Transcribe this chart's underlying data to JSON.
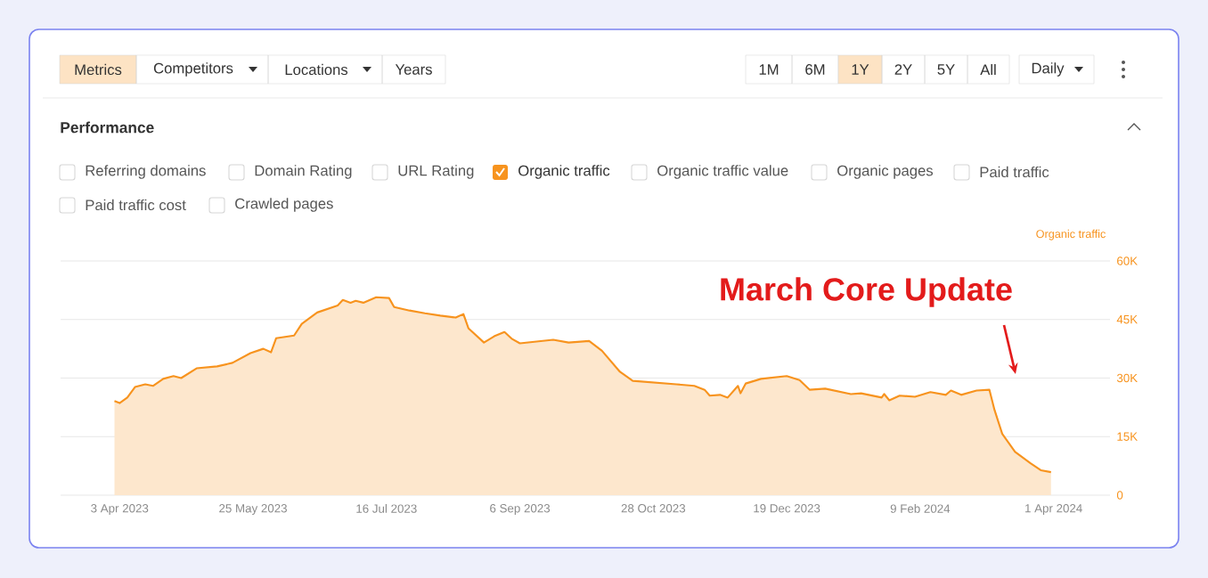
{
  "chart_data": {
    "type": "area",
    "title": "Performance",
    "ylabel": "Organic traffic",
    "x": [
      "2023-04-01",
      "2023-04-03",
      "2023-04-06",
      "2023-04-09",
      "2023-04-13",
      "2023-04-16",
      "2023-04-20",
      "2023-04-24",
      "2023-04-27",
      "2023-05-03",
      "2023-05-11",
      "2023-05-17",
      "2023-05-24",
      "2023-05-29",
      "2023-06-01",
      "2023-06-03",
      "2023-06-10",
      "2023-06-13",
      "2023-06-19",
      "2023-06-27",
      "2023-06-29",
      "2023-07-02",
      "2023-07-04",
      "2023-07-07",
      "2023-07-12",
      "2023-07-17",
      "2023-07-19",
      "2023-07-25",
      "2023-07-31",
      "2023-08-06",
      "2023-08-12",
      "2023-08-15",
      "2023-08-17",
      "2023-08-23",
      "2023-08-27",
      "2023-08-31",
      "2023-09-03",
      "2023-09-06",
      "2023-09-19",
      "2023-09-25",
      "2023-10-03",
      "2023-10-08",
      "2023-10-15",
      "2023-10-20",
      "2023-11-06",
      "2023-11-13",
      "2023-11-17",
      "2023-11-19",
      "2023-11-23",
      "2023-11-26",
      "2023-11-30",
      "2023-12-01",
      "2023-12-03",
      "2023-12-09",
      "2023-12-19",
      "2023-12-24",
      "2023-12-28",
      "2024-01-03",
      "2024-01-13",
      "2024-01-17",
      "2024-01-25",
      "2024-01-26",
      "2024-01-28",
      "2024-02-01",
      "2024-02-07",
      "2024-02-13",
      "2024-02-19",
      "2024-02-21",
      "2024-02-25",
      "2024-03-02",
      "2024-03-07",
      "2024-03-09",
      "2024-03-12",
      "2024-03-17",
      "2024-03-23",
      "2024-03-27",
      "2024-03-31"
    ],
    "series": [
      {
        "color": "#f7931e",
        "values": [
          24100,
          23600,
          25000,
          27700,
          28400,
          28000,
          29800,
          30500,
          30000,
          32500,
          33000,
          33900,
          36400,
          37500,
          36600,
          40200,
          40900,
          43900,
          46800,
          48600,
          50000,
          49300,
          49800,
          49300,
          50700,
          50500,
          48200,
          47300,
          46600,
          46000,
          45500,
          46400,
          42700,
          39100,
          40700,
          41800,
          40000,
          38900,
          39800,
          39100,
          39500,
          37000,
          31600,
          29300,
          28400,
          28000,
          27000,
          25500,
          25700,
          25000,
          28000,
          26100,
          28600,
          29800,
          30500,
          29500,
          27000,
          27300,
          25900,
          26100,
          25000,
          25900,
          24300,
          25500,
          25200,
          26400,
          25700,
          26800,
          25700,
          26800,
          27000,
          21800,
          15700,
          11100,
          8200,
          6400,
          5900
        ]
      }
    ],
    "xlim": [
      "2023-03-11",
      "2024-04-23"
    ],
    "xticks": [
      {
        "value": "2023-04-03",
        "label": "3 Apr 2023"
      },
      {
        "value": "2023-05-25",
        "label": "25 May 2023"
      },
      {
        "value": "2023-07-16",
        "label": "16 Jul 2023"
      },
      {
        "value": "2023-09-06",
        "label": "6 Sep 2023"
      },
      {
        "value": "2023-10-28",
        "label": "28 Oct 2023"
      },
      {
        "value": "2023-12-19",
        "label": "19 Dec 2023"
      },
      {
        "value": "2024-02-09",
        "label": "9 Feb 2024"
      },
      {
        "value": "2024-04-01",
        "label": "1 Apr 2024"
      }
    ],
    "ylim": [
      0,
      60000
    ],
    "yticks": [
      {
        "value": 0,
        "label": "0"
      },
      {
        "value": 15000,
        "label": "15K"
      },
      {
        "value": 30000,
        "label": "30K"
      },
      {
        "value": 45000,
        "label": "45K"
      },
      {
        "value": 60000,
        "label": "60K"
      }
    ],
    "grid": "y",
    "annotations": [
      "March Core Update",
      "Metrics",
      "Competitors",
      "Locations",
      "Years",
      "1M",
      "6M",
      "1Y",
      "2Y",
      "5Y",
      "All",
      "Daily",
      "Referring domains",
      "Domain Rating",
      "URL Rating",
      "Organic traffic",
      "Organic traffic value",
      "Organic pages",
      "Paid traffic",
      "Paid traffic cost",
      "Crawled pages"
    ]
  }
}
